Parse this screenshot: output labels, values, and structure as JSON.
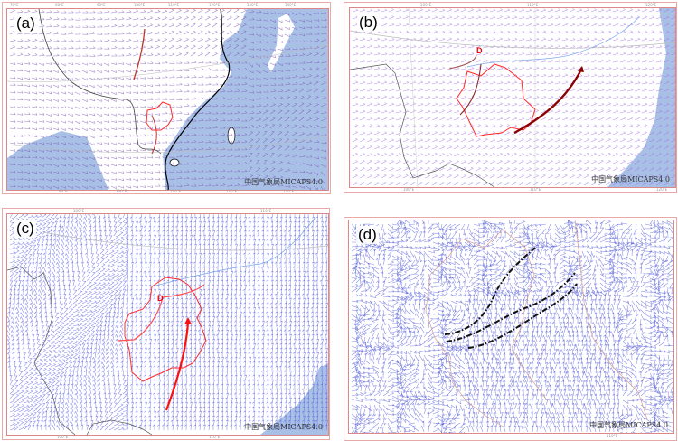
{
  "panels": [
    {
      "label": "(a)",
      "top_ticks": [
        "70°E",
        "80°E",
        "90°E",
        "100°E",
        "110°E",
        "120°E",
        "130°E",
        "140°E"
      ],
      "bottom_ticks": [
        "90°E",
        "100°E",
        "110°E",
        "120°E",
        "130°E"
      ],
      "watermark": "中国气象局MICAPS4.0",
      "barb_color": "#7a55b8"
    },
    {
      "label": "(b)",
      "top_ticks": [
        "100°E",
        "110°E",
        "120°E"
      ],
      "bottom_ticks": [
        "100°E",
        "110°E",
        "120°E"
      ],
      "watermark": "中国气象局MICAPS4.0",
      "barb_color": "#a070e8",
      "marker": "D"
    },
    {
      "label": "(c)",
      "top_ticks": [
        "100°E",
        "110°E"
      ],
      "bottom_ticks": [
        "100°E",
        "110°E"
      ],
      "watermark": "中国气象局MICAPS4.0",
      "barb_color": "#5a62e0",
      "marker": "D"
    },
    {
      "label": "(d)",
      "top_ticks": [],
      "bottom_ticks": [
        "110°E"
      ],
      "watermark": "中国气象局MICAPS4.0",
      "barb_color": "#5a62d8"
    }
  ],
  "colors": {
    "sea": "#a9c0e6",
    "province_outline": "#ff2a2a",
    "boundary": "#d9a090",
    "trough_line": "#8b0000"
  }
}
